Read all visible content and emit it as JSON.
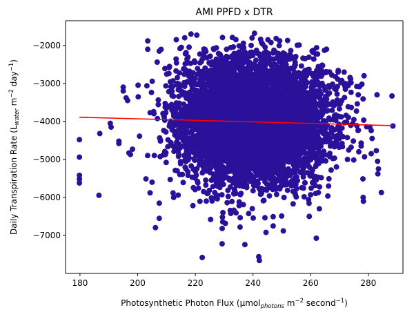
{
  "chart_data": {
    "type": "scatter",
    "title": "AMI PPFD x DTR",
    "xlabel": {
      "pre": "Photosynthetic Photon Flux (µmol",
      "sub": "photons",
      "mid": " m",
      "sup1": "−2",
      "post": " second",
      "sup2": "−1",
      "end": ")"
    },
    "ylabel": {
      "pre": "Daily Transpiration Rate (L",
      "sub": "water",
      "mid": " m",
      "sup1": "−2",
      "post": " day",
      "sup2": "−1",
      "end": ")"
    },
    "xlim": [
      175,
      292
    ],
    "ylim": [
      -8000,
      -1350
    ],
    "xticks": [
      180,
      200,
      220,
      240,
      260,
      280
    ],
    "yticks": [
      -7000,
      -6000,
      -5000,
      -4000,
      -3000,
      -2000
    ],
    "grid": false,
    "marker_color": "#2a1199",
    "series": [
      {
        "mode": "markers",
        "cloud": {
          "x_mean": 240,
          "x_sd": 12.5,
          "y_mean": -4000,
          "y_sd": 800,
          "approx_n": 6000
        },
        "points": [
          [
            179.8,
            -4480
          ],
          [
            179.8,
            -4940
          ],
          [
            179.8,
            -5420
          ],
          [
            179.8,
            -5520
          ],
          [
            179.8,
            -5620
          ],
          [
            190.5,
            -4050
          ],
          [
            190.8,
            -4150
          ],
          [
            193.5,
            -4520
          ],
          [
            193.5,
            -4580
          ],
          [
            195,
            -3100
          ],
          [
            195,
            -3200
          ],
          [
            196,
            -3380
          ],
          [
            196.5,
            -3450
          ],
          [
            197,
            -4830
          ],
          [
            197.5,
            -4870
          ],
          [
            203.5,
            -1880
          ],
          [
            203.5,
            -2100
          ],
          [
            207.5,
            -2150
          ],
          [
            205,
            -5600
          ],
          [
            204.3,
            -5880
          ],
          [
            207.5,
            -6150
          ],
          [
            207.5,
            -6550
          ],
          [
            213.4,
            -1850
          ],
          [
            218.5,
            -1700
          ],
          [
            220.5,
            -1730
          ],
          [
            225.3,
            -6580
          ],
          [
            229.4,
            -6520
          ],
          [
            222.4,
            -7580
          ],
          [
            229.3,
            -7220
          ],
          [
            235.5,
            -6780
          ],
          [
            240.5,
            -1680
          ],
          [
            242,
            -7560
          ],
          [
            242.2,
            -7660
          ],
          [
            244.5,
            -6920
          ],
          [
            250.5,
            -6880
          ],
          [
            252,
            -1870
          ],
          [
            256,
            -1990
          ],
          [
            260.5,
            -2150
          ],
          [
            259.5,
            -6500
          ],
          [
            265.5,
            -2100
          ],
          [
            269.5,
            -2700
          ],
          [
            270.5,
            -2980
          ],
          [
            274,
            -2980
          ],
          [
            276,
            -3080
          ],
          [
            276.5,
            -3300
          ],
          [
            278.5,
            -2800
          ],
          [
            278.2,
            -6000
          ],
          [
            278.3,
            -6100
          ],
          [
            277.5,
            -4570
          ],
          [
            277.5,
            -4650
          ],
          [
            280.5,
            -4150
          ],
          [
            281,
            -4240
          ],
          [
            281,
            -4850
          ],
          [
            281.3,
            -4450
          ],
          [
            283,
            -3300
          ],
          [
            283.2,
            -5050
          ],
          [
            283.5,
            -5250
          ],
          [
            283.3,
            -5380
          ],
          [
            284.5,
            -5870
          ],
          [
            288.2,
            -3330
          ],
          [
            288.5,
            -4120
          ],
          [
            263,
            -6300
          ],
          [
            266.2,
            -5700
          ],
          [
            212.5,
            -6000
          ],
          [
            247,
            -6750
          ]
        ]
      },
      {
        "mode": "line",
        "color": "#ff0000",
        "x": [
          179.8,
          288.5
        ],
        "y": [
          -3890,
          -4110
        ]
      }
    ]
  }
}
